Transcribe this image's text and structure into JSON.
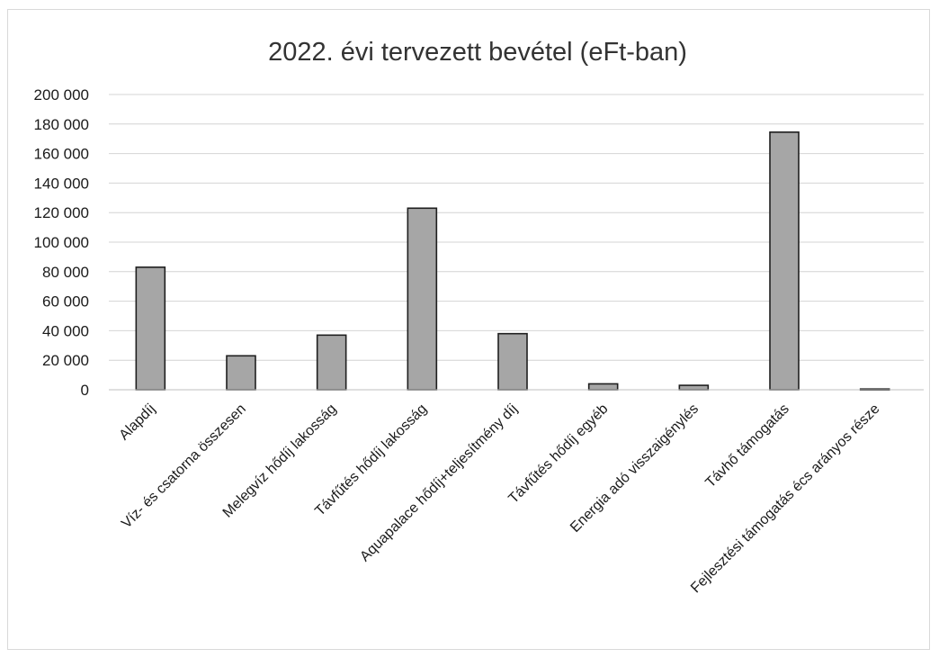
{
  "chart_data": {
    "type": "bar",
    "title": "2022. évi tervezett bevétel (eFt-ban)",
    "xlabel": "",
    "ylabel": "",
    "ylim": [
      0,
      200000
    ],
    "yticks": [
      0,
      20000,
      40000,
      60000,
      80000,
      100000,
      120000,
      140000,
      160000,
      180000,
      200000
    ],
    "ytick_labels": [
      "0",
      "20 000",
      "40 000",
      "60 000",
      "80 000",
      "100 000",
      "120 000",
      "140 000",
      "160 000",
      "180 000",
      "200 000"
    ],
    "categories": [
      "Alapdíj",
      "Víz- és csatorna összesen",
      "Melegvíz hődíj lakosság",
      "Távfűtés hődíj lakosság",
      "Aquapalace hődíj+teljesítmény díj",
      "Távfűtés hődíj egyéb",
      "Energia adó visszaigénylés",
      "Távhő támogatás",
      "Fejlesztési támogatás écs arányos része"
    ],
    "values": [
      83000,
      23000,
      37000,
      123000,
      38000,
      4000,
      3000,
      174500,
      500
    ],
    "grid": true,
    "legend": "none",
    "colors": {
      "bar": "#a6a6a6",
      "bar_edge": "#1f1f1f",
      "grid": "#d4d4d4"
    }
  }
}
